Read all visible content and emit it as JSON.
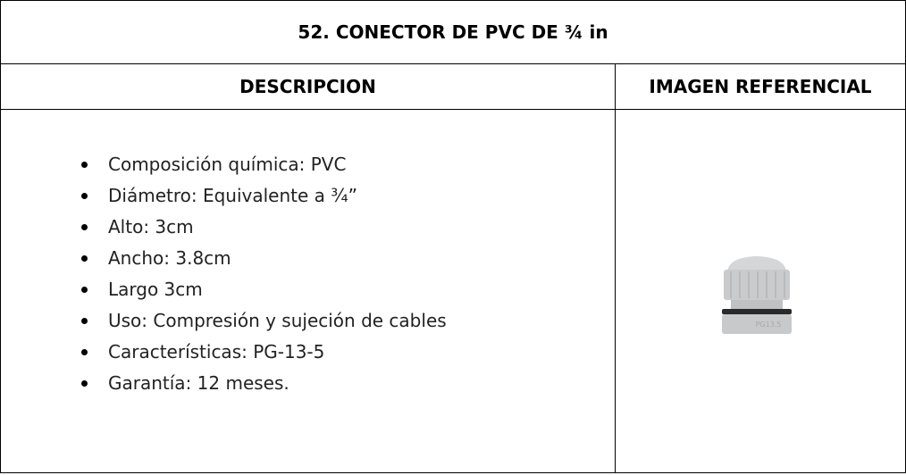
{
  "table": {
    "title": "52. CONECTOR DE PVC DE ¾ in",
    "headers": [
      "DESCRIPCION",
      "IMAGEN REFERENCIAL"
    ],
    "items": [
      "Composición química: PVC",
      "Diámetro: Equivalente a ¾”",
      "Alto: 3cm",
      "Ancho: 3.8cm",
      "Largo 3cm",
      "Uso: Compresión y sujeción de cables",
      "Características: PG-13-5",
      "Garantía: 12 meses."
    ],
    "image_label": "PG13.5"
  }
}
